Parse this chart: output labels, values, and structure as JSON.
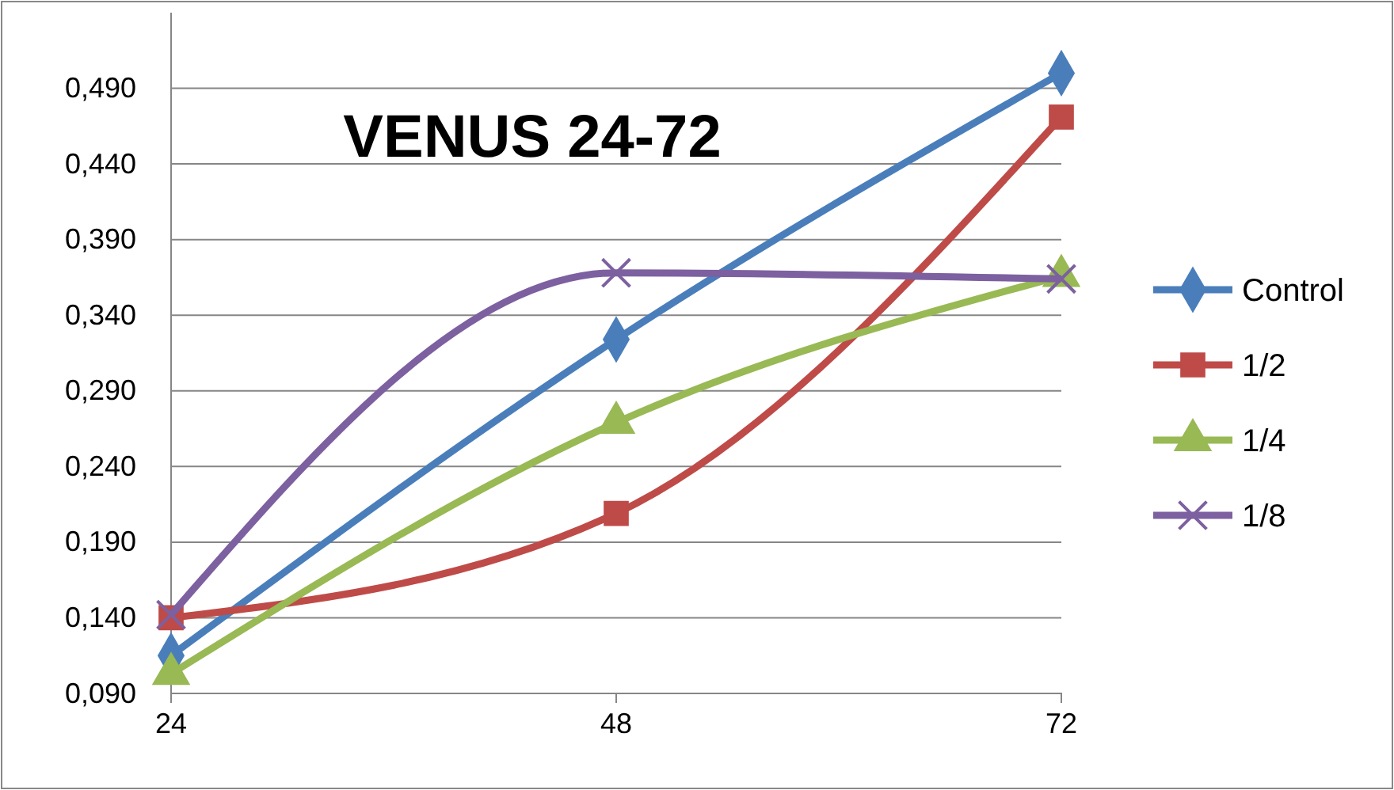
{
  "chart_data": {
    "type": "line",
    "title": "VENUS 24-72",
    "x": [
      24,
      48,
      72
    ],
    "xlim": [
      24,
      72
    ],
    "xticks": [
      24,
      48,
      72
    ],
    "ylim": [
      0.09,
      0.54
    ],
    "yticks": [
      {
        "value": 0.09,
        "label": "0,090"
      },
      {
        "value": 0.14,
        "label": "0,140"
      },
      {
        "value": 0.19,
        "label": "0,190"
      },
      {
        "value": 0.24,
        "label": "0,240"
      },
      {
        "value": 0.29,
        "label": "0,290"
      },
      {
        "value": 0.34,
        "label": "0,340"
      },
      {
        "value": 0.39,
        "label": "0,390"
      },
      {
        "value": 0.44,
        "label": "0,440"
      },
      {
        "value": 0.49,
        "label": "0,490"
      }
    ],
    "grid": "y",
    "legend": "right",
    "line_style": "solid",
    "series": [
      {
        "name": "Control",
        "color": "#4a7ebb",
        "marker": "diamond",
        "values": [
          0.115,
          0.324,
          0.5
        ]
      },
      {
        "name": "1/2",
        "color": "#be4b48",
        "marker": "square",
        "values": [
          0.14,
          0.209,
          0.471
        ]
      },
      {
        "name": "1/4",
        "color": "#98b954",
        "marker": "triangle",
        "values": [
          0.103,
          0.269,
          0.366
        ]
      },
      {
        "name": "1/8",
        "color": "#7d60a0",
        "marker": "cross",
        "values": [
          0.142,
          0.368,
          0.364
        ]
      }
    ]
  }
}
